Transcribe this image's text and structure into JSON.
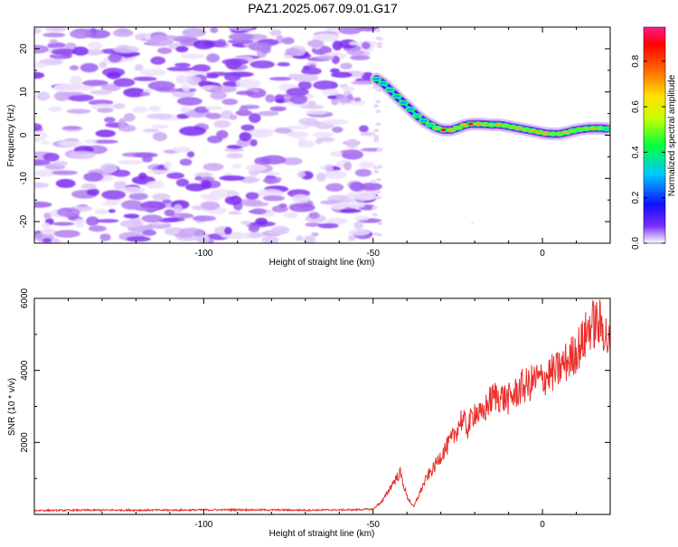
{
  "chart_data": [
    {
      "type": "heatmap",
      "title": "PAZ1.2025.067.09.01.G17",
      "xlabel": "Height of straight line (km)",
      "ylabel": "Frequency (Hz)",
      "xlim": [
        -150,
        20
      ],
      "ylim": [
        -25,
        25
      ],
      "xticks": [
        -100,
        -50,
        0
      ],
      "yticks": [
        20,
        10,
        0,
        -10,
        -20
      ],
      "noise_region_x": [
        -150,
        -50
      ],
      "signal_track": {
        "x": [
          -49,
          -47,
          -45,
          -43,
          -41,
          -39,
          -37,
          -35,
          -33,
          -31,
          -29,
          -27,
          -25,
          -23,
          -21,
          -19,
          -17,
          -15,
          -13,
          -11,
          -9,
          -7,
          -5,
          -3,
          -1,
          1,
          3,
          5,
          7,
          9,
          11,
          13,
          15,
          17,
          19
        ],
        "freq": [
          13,
          12,
          10.5,
          9,
          7.5,
          6,
          4.5,
          3.3,
          2.4,
          1.6,
          1.2,
          1.2,
          1.7,
          2.3,
          2.6,
          2.6,
          2.5,
          2.4,
          2.4,
          2.2,
          1.9,
          1.6,
          1.3,
          1.0,
          0.7,
          0.4,
          0.3,
          0.3,
          0.6,
          1.0,
          1.3,
          1.5,
          1.6,
          1.6,
          1.5
        ],
        "amplitude": [
          0.35,
          0.3,
          0.35,
          0.3,
          0.4,
          0.35,
          0.5,
          0.45,
          0.6,
          0.75,
          0.9,
          0.85,
          0.7,
          0.85,
          0.9,
          0.8,
          0.85,
          0.75,
          0.8,
          0.7,
          0.75,
          0.8,
          0.7,
          0.8,
          0.85,
          0.8,
          0.75,
          0.7,
          0.8,
          0.75,
          0.7,
          0.65,
          0.8,
          0.7,
          0.6
        ]
      },
      "colorbar": {
        "label": "Normalized spectral amplitude",
        "range": [
          0,
          0.95
        ],
        "ticks": [
          0.0,
          0.2,
          0.4,
          0.6,
          0.8
        ]
      }
    },
    {
      "type": "line",
      "xlabel": "Height of straight line (km)",
      "ylabel": "SNR (10 * v/v)",
      "xlim": [
        -150,
        20
      ],
      "ylim": [
        0,
        6000
      ],
      "xticks": [
        -100,
        -50,
        0
      ],
      "yticks": [
        2000,
        4000,
        6000
      ],
      "series": [
        {
          "color": "#e8302c",
          "x": [
            -150,
            -130,
            -110,
            -90,
            -70,
            -55,
            -50,
            -47,
            -44,
            -42,
            -40,
            -38,
            -36,
            -34,
            -32,
            -30,
            -28,
            -26,
            -24,
            -22,
            -20,
            -18,
            -16,
            -14,
            -12,
            -10,
            -8,
            -6,
            -4,
            -2,
            0,
            2,
            4,
            6,
            8,
            10,
            12,
            14,
            16,
            18,
            20
          ],
          "values": [
            110,
            120,
            120,
            130,
            120,
            130,
            150,
            400,
            900,
            1150,
            500,
            200,
            650,
            1050,
            1300,
            1650,
            1900,
            2200,
            2650,
            2400,
            2900,
            2700,
            3100,
            3300,
            3250,
            3200,
            3350,
            3550,
            3600,
            3750,
            3750,
            3900,
            3950,
            4150,
            4300,
            4550,
            4800,
            5250,
            5300,
            5200,
            4600
          ]
        }
      ]
    }
  ]
}
